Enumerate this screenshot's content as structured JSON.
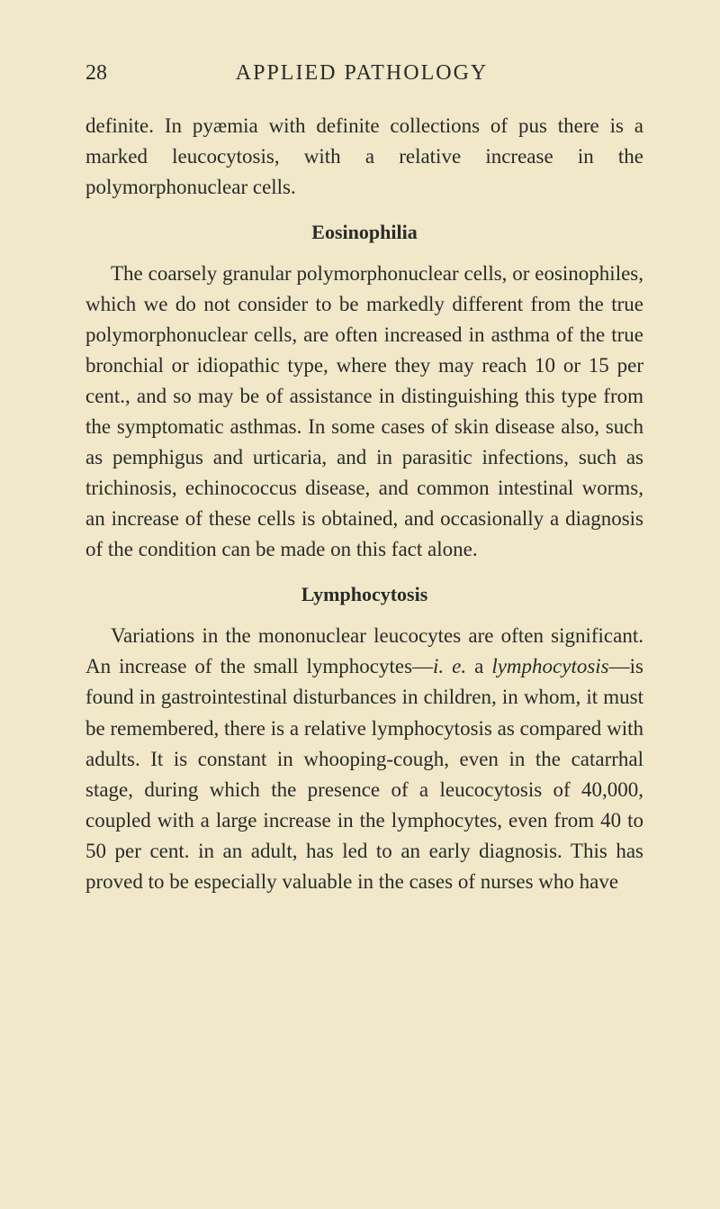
{
  "page": {
    "number": "28",
    "running_title": "APPLIED PATHOLOGY",
    "background_color": "#f0e8c8",
    "text_color": "#2a2a2a",
    "body_fontsize": 23,
    "heading_fontsize": 22,
    "header_fontsize": 24
  },
  "paragraphs": {
    "p1": "definite. In pyæmia with definite collections of pus there is a marked leucocytosis, with a relative increase in the polymorphonuclear cells.",
    "heading1": "Eosinophilia",
    "p2": "The coarsely granular polymorphonuclear cells, or eosinophiles, which we do not consider to be markedly different from the true polymorpho­nuclear cells, are often increased in asthma of the true bronchial or idiopathic type, where they may reach 10 or 15 per cent., and so may be of assist­ance in distinguishing this type from the symptom­atic asthmas. In some cases of skin disease also, such as pemphigus and urticaria, and in parasitic infections, such as trichinosis, echino­coccus disease, and common intestinal worms, an increase of these cells is obtained, and occasionally a diagnosis of the condition can be made on this fact alone.",
    "heading2": "Lymphocytosis",
    "p3_part1": "Variations in the mononuclear leucocytes are often significant. An increase of the small lympho­cytes—",
    "p3_italic1": "i. e.",
    "p3_part2": " a ",
    "p3_italic2": "lymphocytosis",
    "p3_part3": "—is found in gastro­intestinal disturbances in children, in whom, it must be remembered, there is a relative lympho­cytosis as compared with adults. It is constant in whooping-cough, even in the catarrhal stage, during which the presence of a leucocytosis of 40,000, coupled with a large increase in the lympho­cytes, even from 40 to 50 per cent. in an adult, has led to an early diagnosis. This has proved to be especially valuable in the cases of nurses who have"
  }
}
